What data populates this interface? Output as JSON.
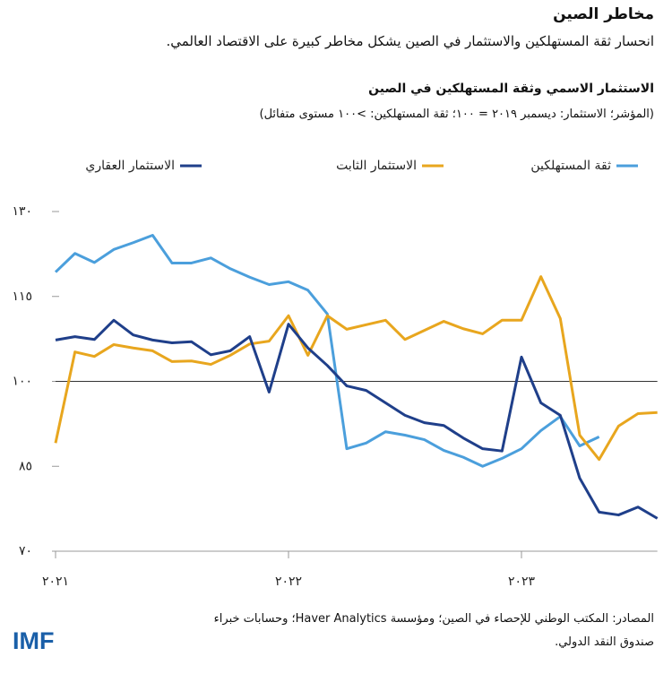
{
  "header": {
    "title": "مخاطر الصين",
    "subtitle": "انحسار ثقة المستهلكين والاستثمار في الصين يشكل مخاطر كبيرة على الاقتصاد العالمي."
  },
  "chart_data": {
    "type": "line",
    "title": "الاستثمار الاسمي وثقة المستهلكين في الصين",
    "subtitle": "(المؤشر؛ الاستثمار: ديسمبر ٢٠١٩ = ١٠٠؛ ثقة المستهلكين: >١٠٠ مستوى متفائل)",
    "categories": [
      "٢٠٢١",
      null,
      null,
      null,
      null,
      null,
      null,
      null,
      null,
      null,
      null,
      null,
      "٢٠٢٢",
      null,
      null,
      null,
      null,
      null,
      null,
      null,
      null,
      null,
      null,
      null,
      "٢٠٢٣",
      null,
      null,
      null,
      null,
      null,
      null,
      null
    ],
    "series": [
      {
        "name": "ثقة المستهلكين",
        "color": "#4b9fdc",
        "values": [
          119.3,
          122.6,
          121.0,
          123.3,
          124.5,
          125.8,
          120.9,
          120.9,
          121.8,
          119.9,
          118.4,
          117.1,
          117.6,
          116.1,
          111.9,
          88.1,
          89.1,
          91.1,
          90.5,
          89.7,
          87.8,
          86.6,
          85.0,
          86.4,
          88.1,
          91.3,
          93.8,
          88.6,
          90.2,
          null,
          null,
          null
        ]
      },
      {
        "name": "الاستثمار الثابت",
        "color": "#e8a61e",
        "values": [
          89.1,
          105.2,
          104.4,
          106.5,
          105.9,
          105.4,
          103.5,
          103.6,
          103.0,
          104.6,
          106.6,
          107.1,
          111.6,
          104.6,
          111.6,
          109.2,
          110.0,
          110.8,
          107.4,
          109.0,
          110.6,
          109.3,
          108.4,
          110.8,
          110.8,
          118.5,
          111.1,
          90.5,
          86.2,
          92.1,
          94.3,
          94.5
        ]
      },
      {
        "name": "الاستثمار العقاري",
        "color": "#1f3f8a",
        "values": [
          107.3,
          107.9,
          107.4,
          110.8,
          108.2,
          107.3,
          106.8,
          107.0,
          104.7,
          105.4,
          107.9,
          98.1,
          110.1,
          105.9,
          102.8,
          99.2,
          98.4,
          96.2,
          94.0,
          92.7,
          92.2,
          90.0,
          88.1,
          87.7,
          104.3,
          96.2,
          94.0,
          82.9,
          76.9,
          76.4,
          77.8,
          75.8
        ]
      }
    ],
    "ylim": [
      70,
      130
    ],
    "yticks": [
      {
        "value": 70,
        "label": "٧٠"
      },
      {
        "value": 85,
        "label": "٨٥"
      },
      {
        "value": 100,
        "label": "١٠٠"
      },
      {
        "value": 115,
        "label": "١١٥"
      },
      {
        "value": 130,
        "label": "١٣٠"
      }
    ],
    "reference_line": 100,
    "grid": false,
    "legend": "top"
  },
  "footer": {
    "source": [
      "المصادر: المكتب الوطني للإحصاء في الصين؛ ومؤسسة Haver Analytics؛ وحسابات خبراء",
      "صندوق النقد الدولي."
    ],
    "logo": "IMF"
  }
}
